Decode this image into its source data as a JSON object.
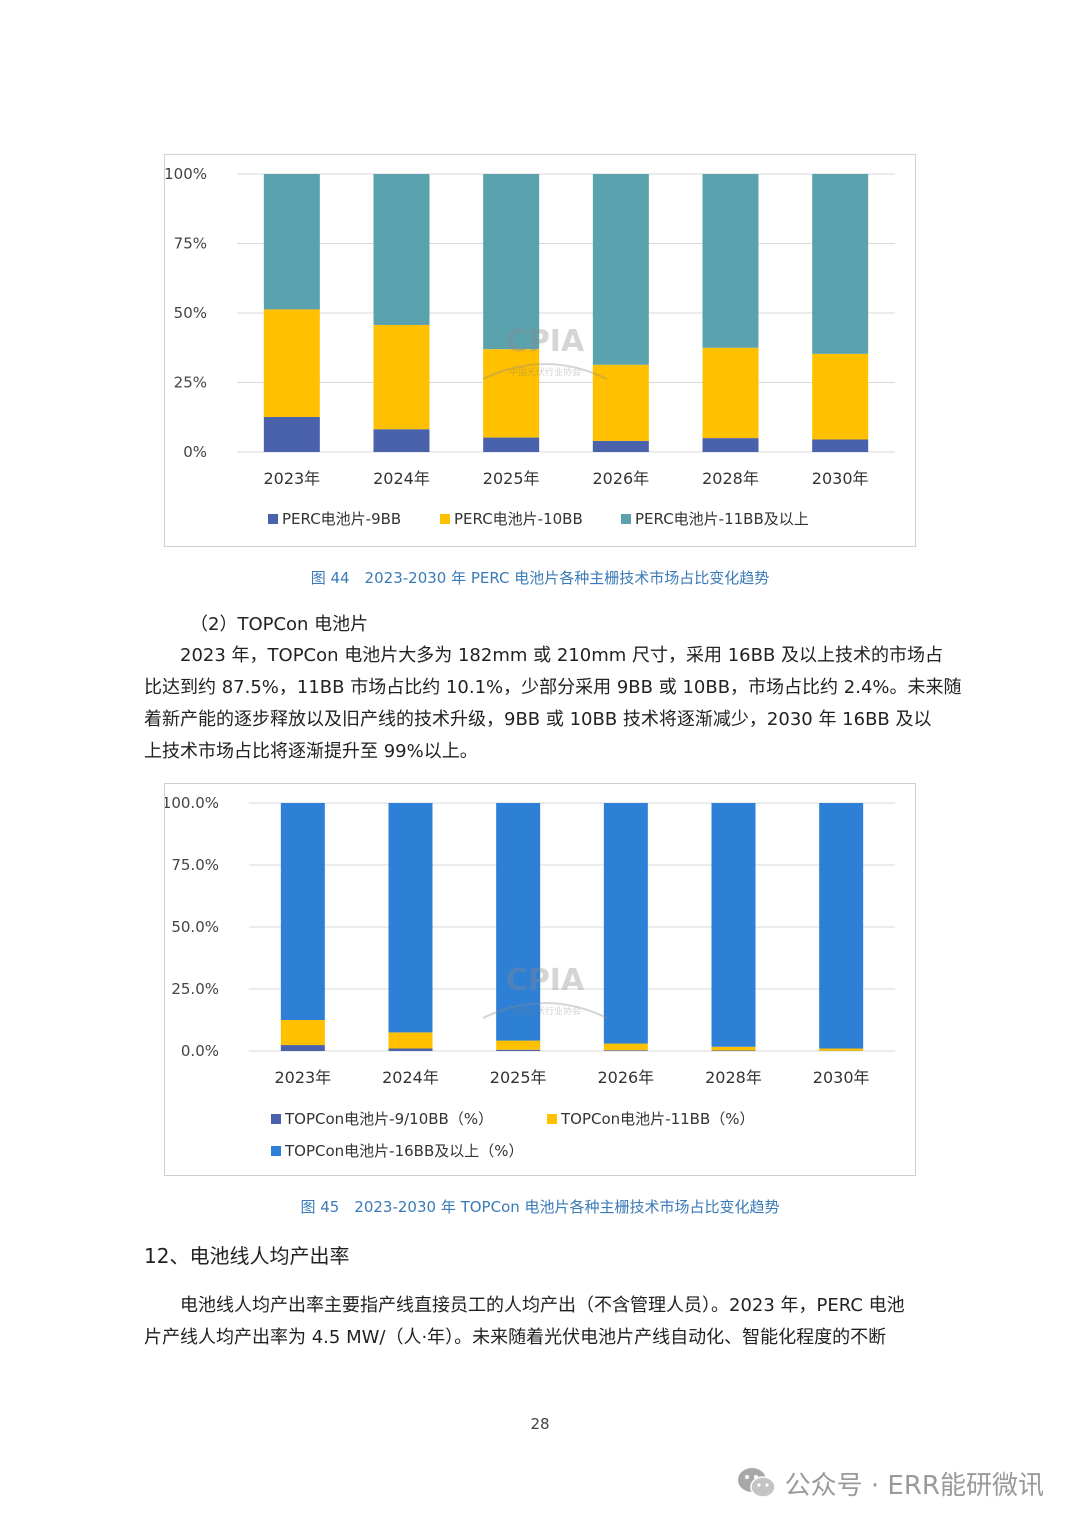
{
  "chart_data": [
    {
      "type": "bar",
      "stacked": true,
      "title": "",
      "categories": [
        "2023年",
        "2024年",
        "2025年",
        "2026年",
        "2028年",
        "2030年"
      ],
      "ylim": [
        0,
        100
      ],
      "y_ticks": [
        "0%",
        "25%",
        "50%",
        "75%",
        "100%"
      ],
      "gridlines": true,
      "legend_position": "bottom",
      "series": [
        {
          "name": "PERC电池片-9BB",
          "color": "#4a62ab",
          "values": [
            12.6,
            8.2,
            5.2,
            4.0,
            5.0,
            4.5
          ]
        },
        {
          "name": "PERC电池片-10BB",
          "color": "#ffc000",
          "values": [
            38.7,
            37.5,
            31.8,
            27.4,
            32.5,
            30.8
          ]
        },
        {
          "name": "PERC电池片-11BB及以上",
          "color": "#5aa2ae",
          "values": [
            48.7,
            54.3,
            63.0,
            68.6,
            62.5,
            64.7
          ]
        }
      ]
    },
    {
      "type": "bar",
      "stacked": true,
      "title": "",
      "categories": [
        "2023年",
        "2024年",
        "2025年",
        "2026年",
        "2028年",
        "2030年"
      ],
      "ylim": [
        0,
        100
      ],
      "y_ticks": [
        "0.0%",
        "25.0%",
        "50.0%",
        "75.0%",
        "100.0%"
      ],
      "gridlines": true,
      "legend_position": "bottom",
      "series": [
        {
          "name": "TOPCon电池片-9/10BB（%）",
          "color": "#4a62ab",
          "values": [
            2.4,
            1.0,
            0.5,
            0.3,
            0.2,
            0.1
          ]
        },
        {
          "name": "TOPCon电池片-11BB（%）",
          "color": "#ffc000",
          "values": [
            10.1,
            6.5,
            3.7,
            2.7,
            1.5,
            0.9
          ]
        },
        {
          "name": "TOPCon电池片-16BB及以上（%）",
          "color": "#2e7fd6",
          "values": [
            87.5,
            92.5,
            95.8,
            97.0,
            98.3,
            99.0
          ]
        }
      ]
    }
  ],
  "watermark": {
    "logo_text": "CPIA",
    "org_text": "中国光伏行业协会"
  },
  "captions": {
    "fig44": "图 44　2023-2030 年 PERC 电池片各种主栅技术市场占比变化趋势",
    "fig45": "图 45　2023-2030 年 TOPCon 电池片各种主栅技术市场占比变化趋势"
  },
  "text": {
    "subheading": "（2）TOPCon 电池片",
    "para1_lines": [
      "　　2023 年，TOPCon 电池片大多为 182mm 或 210mm 尺寸，采用 16BB 及以上技术的市场占",
      "比达到约 87.5%，11BB 市场占比约 10.1%，少部分采用 9BB 或 10BB，市场占比约 2.4%。未来随",
      "着新产能的逐步释放以及旧产线的技术升级，9BB 或 10BB 技术将逐渐减少，2030 年 16BB 及以",
      "上技术市场占比将逐渐提升至 99%以上。"
    ],
    "section_heading": "12、电池线人均产出率",
    "para2_lines": [
      "　　电池线人均产出率主要指产线直接员工的人均产出（不含管理人员）。2023 年，PERC 电池",
      "片产线人均产出率为 4.5 MW/（人·年）。未来随着光伏电池片产线自动化、智能化程度的不断"
    ],
    "page_number": "28",
    "wechat_label": "公众号 · ERR能研微讯"
  }
}
